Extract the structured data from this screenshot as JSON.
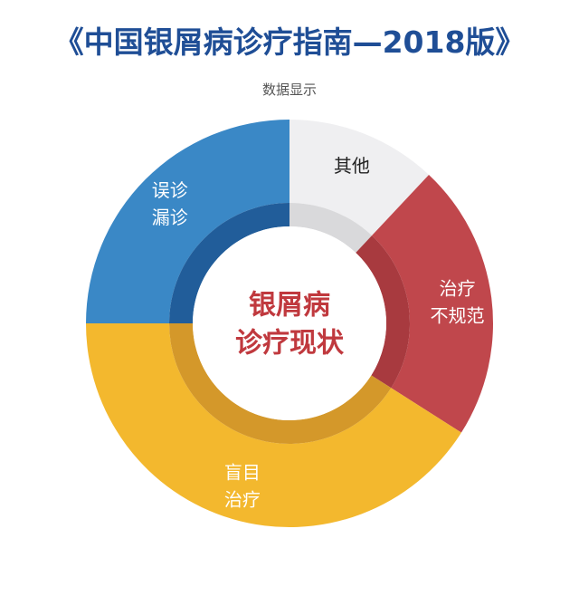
{
  "header": {
    "title": "《中国银屑病诊疗指南—2018版》",
    "subtitle": "数据显示"
  },
  "chart_data": {
    "type": "pie",
    "variant": "donut",
    "center_label": [
      "银屑病",
      "诊疗现状"
    ],
    "slices": [
      {
        "label": [
          "其他"
        ],
        "value": 12,
        "color": "#efeff1",
        "inner_color": "#d9d9db",
        "text_color": "#222222"
      },
      {
        "label": [
          "治疗",
          "不规范"
        ],
        "value": 22,
        "color": "#c0474c",
        "inner_color": "#a83a3f",
        "text_color": "#ffffff"
      },
      {
        "label": [
          "盲目",
          "治疗"
        ],
        "value": 41,
        "color": "#f3b82e",
        "inner_color": "#d4982a",
        "text_color": "#ffffff"
      },
      {
        "label": [
          "误诊",
          "漏诊"
        ],
        "value": 25,
        "color": "#3a88c6",
        "inner_color": "#215d9a",
        "text_color": "#ffffff"
      }
    ],
    "center_text_color": "#c0393e",
    "start_angle_deg": 0
  }
}
